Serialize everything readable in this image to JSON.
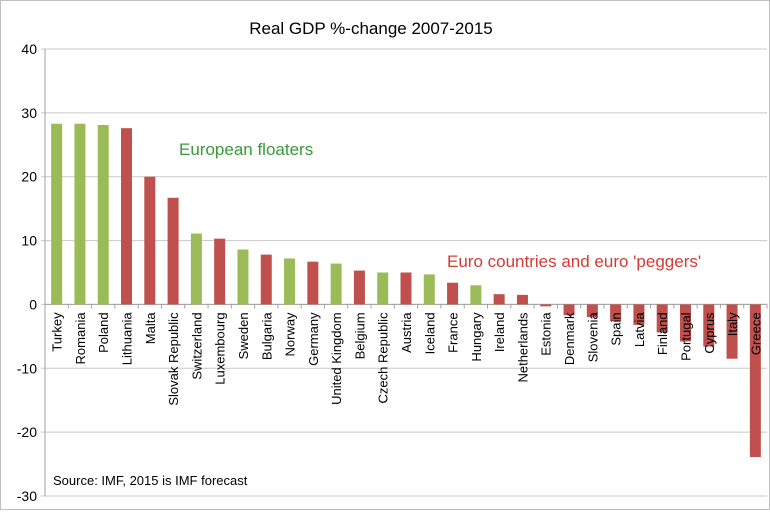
{
  "chart_data": {
    "type": "bar",
    "title": "Real GDP %-change 2007-2015",
    "xlabel": "",
    "ylabel": "",
    "ylim": [
      -30,
      40
    ],
    "yticks": [
      40,
      30,
      20,
      10,
      0,
      -10,
      -20,
      -30
    ],
    "grid": true,
    "categories": [
      "Turkey",
      "Romania",
      "Poland",
      "Lithuania",
      "Malta",
      "Slovak Republic",
      "Switzerland",
      "Luxembourg",
      "Sweden",
      "Bulgaria",
      "Norway",
      "Germany",
      "United Kingdom",
      "Belgium",
      "Czech Republic",
      "Austria",
      "Iceland",
      "France",
      "Hungary",
      "Ireland",
      "Netherlands",
      "Estonia",
      "Denmark",
      "Slovenia",
      "Spain",
      "Latvia",
      "Finland",
      "Portugal",
      "Cyprus",
      "Italy",
      "Greece"
    ],
    "values": [
      28.3,
      28.3,
      28.1,
      27.6,
      20.0,
      16.7,
      11.1,
      10.3,
      8.6,
      7.8,
      7.2,
      6.7,
      6.4,
      5.3,
      5.0,
      5.0,
      4.7,
      3.4,
      3.0,
      1.6,
      1.5,
      -0.3,
      -1.7,
      -2.0,
      -2.6,
      -3.2,
      -4.4,
      -5.8,
      -6.6,
      -8.5,
      -23.9
    ],
    "groups": [
      "floater",
      "floater",
      "floater",
      "euro",
      "euro",
      "euro",
      "floater",
      "euro",
      "floater",
      "euro",
      "floater",
      "euro",
      "floater",
      "euro",
      "floater",
      "euro",
      "floater",
      "euro",
      "floater",
      "euro",
      "euro",
      "euro",
      "euro",
      "euro",
      "euro",
      "euro",
      "euro",
      "euro",
      "euro",
      "euro",
      "euro"
    ],
    "annotations": {
      "floaters": "European floaters",
      "euro": "Euro countries and euro 'peggers'",
      "source": "Source: IMF, 2015 is IMF forecast"
    },
    "colors": {
      "floater": "#9bbb59",
      "euro": "#c0504d",
      "floater_text": "#3a9a3a",
      "euro_text": "#d33b36"
    }
  }
}
